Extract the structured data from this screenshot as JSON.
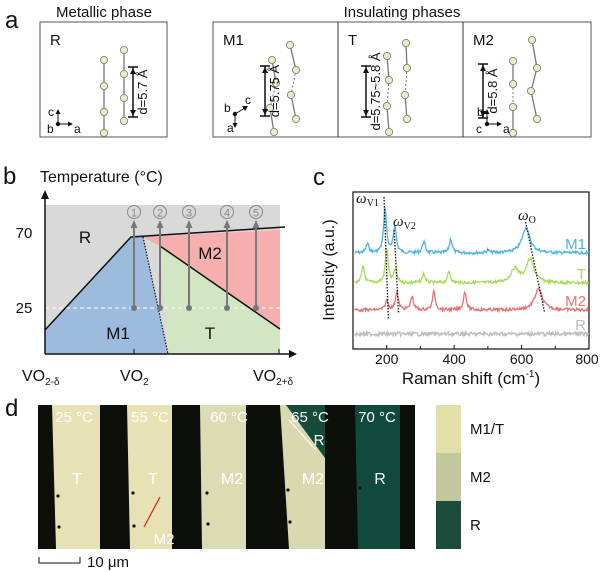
{
  "panel_a": {
    "label": "a",
    "metallic_title": "Metallic phase",
    "insulating_title": "Insulating phases",
    "phases": [
      {
        "name": "R",
        "d": "d=5.7 Å",
        "axes": [
          "c",
          "b",
          "a"
        ]
      },
      {
        "name": "M1",
        "d": "d=5.75 Å",
        "axes": [
          "b",
          "c",
          "a"
        ]
      },
      {
        "name": "T",
        "d": "d=5.75~5.8 Å",
        "axes": []
      },
      {
        "name": "M2",
        "d": "d=5.8 Å",
        "axes": [
          "b",
          "c",
          "a"
        ]
      }
    ]
  },
  "panel_b": {
    "label": "b",
    "y_title": "Temperature (°C)",
    "y_ticks": [
      "70",
      "25"
    ],
    "x_ticks": [
      "VO",
      "VO",
      "VO"
    ],
    "x_subs": [
      "2-δ",
      "2",
      "2+δ"
    ],
    "regions": [
      "R",
      "M1",
      "M2",
      "T"
    ],
    "paths": [
      "1",
      "2",
      "3",
      "4",
      "5"
    ],
    "colors": {
      "R": "#d9d9d9",
      "M1": "#9dbcdd",
      "M2": "#f6aeae",
      "T": "#d3e6c4"
    }
  },
  "chart_data": {
    "type": "line",
    "title": "",
    "xlabel": "Raman shift (cm",
    "xlabel_sup": "-1",
    "xlabel_end": ")",
    "ylabel": "Intensity (a.u.)",
    "xlim": [
      100,
      800
    ],
    "x_ticks": [
      "200",
      "400",
      "600",
      "800"
    ],
    "annotations": [
      {
        "label": "ω",
        "sub": "V1"
      },
      {
        "label": "ω",
        "sub": "V2"
      },
      {
        "label": "ω",
        "sub": "O"
      }
    ],
    "series": [
      {
        "name": "M1",
        "color": "#4db3e6",
        "peaks": [
          [
            143,
            0.2
          ],
          [
            195,
            1.0
          ],
          [
            224,
            0.6
          ],
          [
            310,
            0.25
          ],
          [
            390,
            0.3
          ],
          [
            500,
            0.06
          ],
          [
            613,
            0.55
          ]
        ]
      },
      {
        "name": "T",
        "color": "#a6dc5a",
        "peaks": [
          [
            130,
            0.35
          ],
          [
            200,
            0.75
          ],
          [
            226,
            0.3
          ],
          [
            310,
            0.2
          ],
          [
            385,
            0.25
          ],
          [
            580,
            0.3
          ],
          [
            625,
            0.5
          ]
        ]
      },
      {
        "name": "M2",
        "color": "#e57373",
        "peaks": [
          [
            200,
            0.2
          ],
          [
            230,
            0.4
          ],
          [
            275,
            0.3
          ],
          [
            340,
            0.4
          ],
          [
            432,
            0.4
          ],
          [
            650,
            0.45
          ]
        ]
      },
      {
        "name": "R",
        "color": "#bdbdbd",
        "peaks": []
      }
    ]
  },
  "panel_c": {
    "label": "c"
  },
  "panel_d": {
    "label": "d",
    "temperatures": [
      "25 °C",
      "55 °C",
      "60 °C",
      "65 °C",
      "70 °C"
    ],
    "stripe_phases": [
      "T",
      "T",
      "M2",
      "M2",
      "R"
    ],
    "extra_labels": {
      "domain_R": "R",
      "domain_M2": "M2"
    },
    "scale_bar": "10 μm",
    "legend": [
      {
        "label": "M1/T",
        "color": "#e3dfa9"
      },
      {
        "label": "M2",
        "color": "#c3c79c"
      },
      {
        "label": "R",
        "color": "#1c4b3b"
      }
    ]
  }
}
